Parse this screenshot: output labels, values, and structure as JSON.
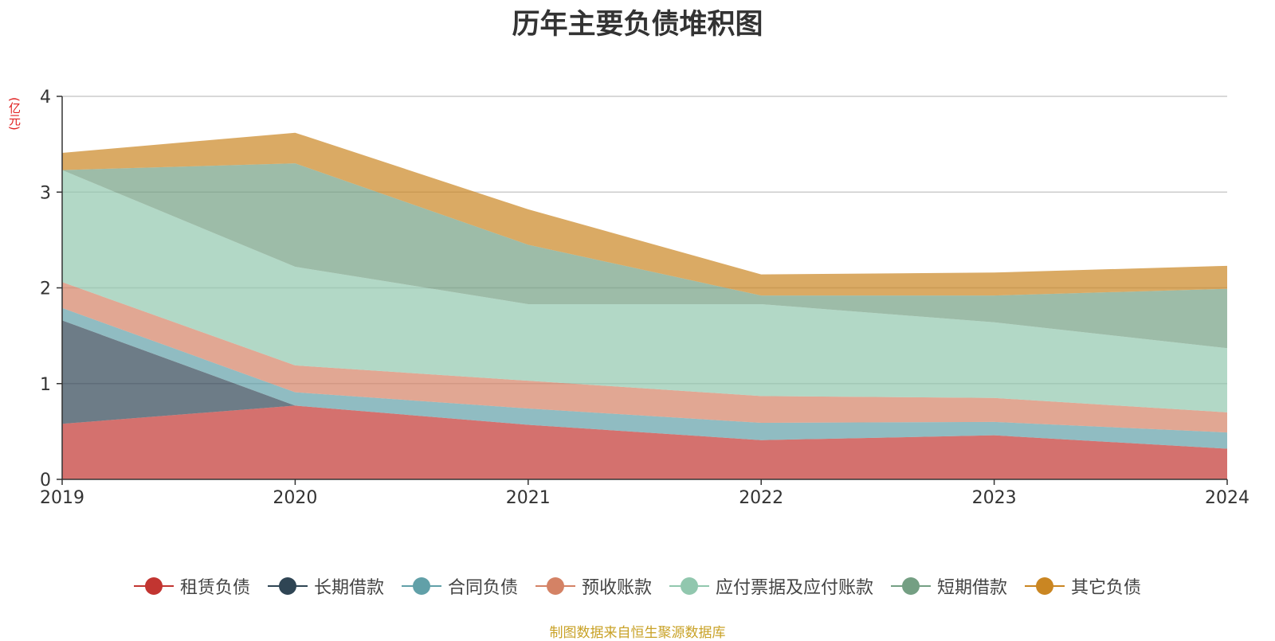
{
  "title": "历年主要负债堆积图",
  "unit_label": "(亿元)",
  "source": "制图数据来自恒生聚源数据库",
  "chart_data": {
    "type": "area",
    "stacked": true,
    "categories": [
      "2019",
      "2020",
      "2021",
      "2022",
      "2023",
      "2024"
    ],
    "ylim": [
      0,
      4
    ],
    "yticks": [
      0,
      1,
      2,
      3,
      4
    ],
    "grid": true,
    "legend_position": "bottom",
    "series": [
      {
        "name": "租赁负债",
        "color": "#c23531",
        "values": [
          0.58,
          0.77,
          0.57,
          0.41,
          0.46,
          0.32
        ]
      },
      {
        "name": "长期借款",
        "color": "#2f4554",
        "values": [
          1.08,
          0,
          0,
          0,
          0,
          0
        ]
      },
      {
        "name": "合同负债",
        "color": "#61a0a8",
        "values": [
          0.13,
          0.14,
          0.17,
          0.18,
          0.14,
          0.17
        ]
      },
      {
        "name": "预收账款",
        "color": "#d48265",
        "values": [
          0.27,
          0.28,
          0.29,
          0.28,
          0.25,
          0.21
        ]
      },
      {
        "name": "应付票据及应付账款",
        "color": "#91c7ae",
        "values": [
          1.17,
          1.03,
          0.8,
          0.96,
          0.79,
          0.67
        ]
      },
      {
        "name": "短期借款",
        "color": "#749f83",
        "values": [
          0,
          1.08,
          0.62,
          0.09,
          0.28,
          0.62
        ]
      },
      {
        "name": "其它负债",
        "color": "#ca8622",
        "values": [
          0.18,
          0.32,
          0.37,
          0.22,
          0.24,
          0.24
        ]
      }
    ]
  }
}
